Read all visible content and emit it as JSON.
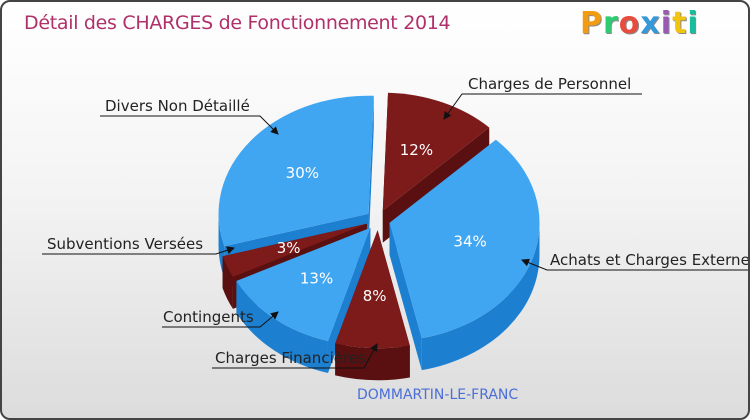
{
  "title": "Détail des CHARGES de Fonctionnement 2014",
  "logo": {
    "text": "Proxiti",
    "letters": [
      {
        "ch": "P",
        "color": "#f39c12"
      },
      {
        "ch": "r",
        "color": "#2ecc71"
      },
      {
        "ch": "o",
        "color": "#e74c3c"
      },
      {
        "ch": "x",
        "color": "#3498db"
      },
      {
        "ch": "i",
        "color": "#9b59b6"
      },
      {
        "ch": "t",
        "color": "#f1c40f"
      },
      {
        "ch": "i",
        "color": "#1abc9c"
      }
    ]
  },
  "subtitle": "DOMMARTIN-LE-FRANC",
  "colors": {
    "blue_top": "#41a6f2",
    "blue_side": "#1d7fd0",
    "red_top": "#7d1a1a",
    "red_side": "#5a1010",
    "title": "#b0306a",
    "subtitle": "#4a6fd6"
  },
  "chart_data": {
    "type": "pie",
    "title": "Détail des CHARGES de Fonctionnement 2014",
    "subtitle": "DOMMARTIN-LE-FRANC",
    "unit": "%",
    "slices": [
      {
        "name": "Charges de Personnel",
        "value": 12,
        "label": "12%",
        "color": "red"
      },
      {
        "name": "Achats et Charges Externes",
        "value": 34,
        "label": "34%",
        "color": "blue"
      },
      {
        "name": "Charges Financières",
        "value": 8,
        "label": "8%",
        "color": "red"
      },
      {
        "name": "Contingents",
        "value": 13,
        "label": "13%",
        "color": "blue"
      },
      {
        "name": "Subventions Versées",
        "value": 3,
        "label": "3%",
        "color": "red"
      },
      {
        "name": "Divers Non Détaillé",
        "value": 30,
        "label": "30%",
        "color": "blue"
      }
    ]
  }
}
